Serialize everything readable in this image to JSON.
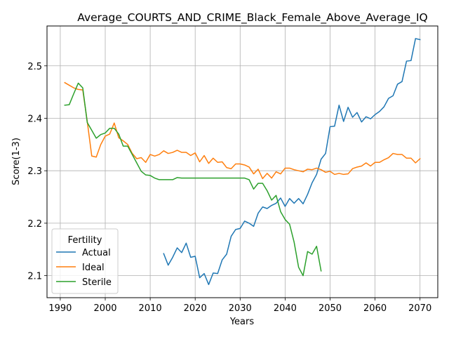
{
  "chart_data": {
    "type": "line",
    "title": "Average_COURTS_AND_CRIME_Black_Female_Above_Average_IQ",
    "xlabel": "Years",
    "ylabel": "Score(1-3)",
    "xlim": [
      1987.05,
      2073.95
    ],
    "ylim": [
      2.058,
      2.576
    ],
    "xticks": [
      1990,
      2000,
      2010,
      2020,
      2030,
      2040,
      2050,
      2060,
      2070
    ],
    "yticks": [
      2.1,
      2.2,
      2.3,
      2.4,
      2.5
    ],
    "xtick_labels": [
      "1990",
      "2000",
      "2010",
      "2020",
      "2030",
      "2040",
      "2050",
      "2060",
      "2070"
    ],
    "ytick_labels": [
      "2.1",
      "2.2",
      "2.3",
      "2.4",
      "2.5"
    ],
    "grid": true,
    "legend": {
      "title": "Fertility",
      "placement": "lower-left"
    },
    "series": [
      {
        "name": "Actual",
        "color": "#1f77b4",
        "x": [
          2013,
          2014,
          2015,
          2016,
          2017,
          2018,
          2019,
          2020,
          2021,
          2022,
          2023,
          2024,
          2025,
          2026,
          2027,
          2028,
          2029,
          2030,
          2031,
          2032,
          2033,
          2034,
          2035,
          2036,
          2037,
          2038,
          2039,
          2040,
          2041,
          2042,
          2043,
          2044,
          2045,
          2046,
          2047,
          2048,
          2049,
          2050,
          2051,
          2052,
          2053,
          2054,
          2055,
          2056,
          2057,
          2058,
          2059,
          2060,
          2061,
          2062,
          2063,
          2064,
          2065,
          2066,
          2067,
          2068,
          2069,
          2070
        ],
        "y": [
          2.142,
          2.12,
          2.135,
          2.153,
          2.144,
          2.162,
          2.135,
          2.137,
          2.096,
          2.104,
          2.083,
          2.105,
          2.104,
          2.13,
          2.141,
          2.175,
          2.188,
          2.19,
          2.204,
          2.2,
          2.194,
          2.219,
          2.231,
          2.228,
          2.234,
          2.238,
          2.248,
          2.232,
          2.247,
          2.238,
          2.247,
          2.237,
          2.255,
          2.277,
          2.293,
          2.322,
          2.333,
          2.384,
          2.385,
          2.425,
          2.394,
          2.421,
          2.402,
          2.411,
          2.393,
          2.403,
          2.399,
          2.407,
          2.413,
          2.422,
          2.438,
          2.443,
          2.465,
          2.47,
          2.509,
          2.51,
          2.552,
          2.55
        ]
      },
      {
        "name": "Ideal",
        "color": "#ff7f0e",
        "x": [
          1991,
          1992,
          1993,
          1994,
          1995,
          1996,
          1997,
          1998,
          1999,
          2000,
          2001,
          2002,
          2003,
          2004,
          2005,
          2006,
          2007,
          2008,
          2009,
          2010,
          2011,
          2012,
          2013,
          2014,
          2015,
          2016,
          2017,
          2018,
          2019,
          2020,
          2021,
          2022,
          2023,
          2024,
          2025,
          2026,
          2027,
          2028,
          2029,
          2030,
          2031,
          2032,
          2033,
          2034,
          2035,
          2036,
          2037,
          2038,
          2039,
          2040,
          2041,
          2042,
          2043,
          2044,
          2045,
          2046,
          2047,
          2048,
          2049,
          2050,
          2051,
          2052,
          2053,
          2054,
          2055,
          2056,
          2057,
          2058,
          2059,
          2060,
          2061,
          2062,
          2063,
          2064,
          2065,
          2066,
          2067,
          2068,
          2069,
          2070
        ],
        "y": [
          2.468,
          2.463,
          2.458,
          2.455,
          2.454,
          2.394,
          2.328,
          2.326,
          2.35,
          2.366,
          2.37,
          2.391,
          2.363,
          2.357,
          2.35,
          2.333,
          2.323,
          2.325,
          2.316,
          2.331,
          2.328,
          2.331,
          2.338,
          2.333,
          2.335,
          2.339,
          2.335,
          2.335,
          2.329,
          2.334,
          2.317,
          2.329,
          2.314,
          2.324,
          2.316,
          2.317,
          2.306,
          2.304,
          2.313,
          2.313,
          2.311,
          2.307,
          2.294,
          2.303,
          2.285,
          2.295,
          2.286,
          2.298,
          2.294,
          2.305,
          2.305,
          2.302,
          2.3,
          2.298,
          2.303,
          2.302,
          2.305,
          2.302,
          2.297,
          2.299,
          2.293,
          2.295,
          2.293,
          2.294,
          2.304,
          2.307,
          2.309,
          2.315,
          2.309,
          2.316,
          2.316,
          2.321,
          2.325,
          2.333,
          2.331,
          2.331,
          2.324,
          2.324,
          2.315,
          2.323
        ]
      },
      {
        "name": "Sterile",
        "color": "#2ca02c",
        "x": [
          1991,
          1992,
          1993,
          1994,
          1995,
          1996,
          1997,
          1998,
          1999,
          2000,
          2001,
          2002,
          2003,
          2004,
          2005,
          2006,
          2007,
          2008,
          2009,
          2010,
          2011,
          2012,
          2013,
          2014,
          2015,
          2016,
          2017,
          2018,
          2019,
          2020,
          2021,
          2022,
          2023,
          2024,
          2025,
          2026,
          2027,
          2028,
          2029,
          2030,
          2031,
          2032,
          2033,
          2034,
          2035,
          2036,
          2037,
          2038,
          2039,
          2040,
          2041,
          2042,
          2043,
          2044,
          2045,
          2046,
          2047,
          2048
        ],
        "y": [
          2.425,
          2.426,
          2.447,
          2.467,
          2.458,
          2.392,
          2.377,
          2.362,
          2.369,
          2.372,
          2.381,
          2.381,
          2.37,
          2.347,
          2.347,
          2.331,
          2.315,
          2.299,
          2.292,
          2.291,
          2.286,
          2.283,
          2.283,
          2.283,
          2.283,
          2.287,
          2.286,
          2.286,
          2.286,
          2.286,
          2.286,
          2.286,
          2.286,
          2.286,
          2.286,
          2.286,
          2.286,
          2.286,
          2.286,
          2.286,
          2.286,
          2.283,
          2.265,
          2.276,
          2.276,
          2.262,
          2.244,
          2.253,
          2.222,
          2.207,
          2.198,
          2.164,
          2.116,
          2.1,
          2.146,
          2.141,
          2.156,
          2.109
        ]
      }
    ]
  }
}
